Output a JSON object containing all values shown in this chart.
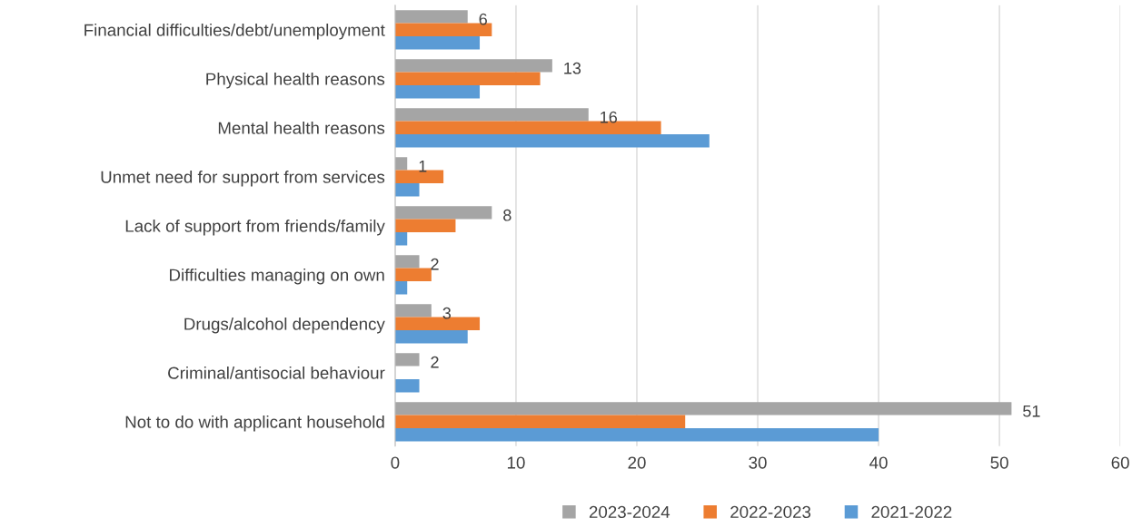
{
  "chart_data": {
    "type": "bar",
    "orientation": "horizontal",
    "categories": [
      "Financial difficulties/debt/unemployment",
      "Physical health reasons",
      "Mental health reasons",
      "Unmet need for support from services",
      "Lack of support from friends/family",
      "Difficulties managing on own",
      "Drugs/alcohol dependency",
      "Criminal/antisocial behaviour",
      "Not to do with applicant household"
    ],
    "series": [
      {
        "name": "2023-2024",
        "color": "#a5a5a5",
        "values": [
          6,
          13,
          16,
          1,
          8,
          2,
          3,
          2,
          51
        ],
        "value_labels": [
          "6",
          "13",
          "16",
          "1",
          "8",
          "2",
          "3",
          "2",
          "51"
        ]
      },
      {
        "name": "2022-2023",
        "color": "#ed7d31",
        "values": [
          8,
          12,
          22,
          4,
          5,
          3,
          7,
          0,
          24
        ]
      },
      {
        "name": "2021-2022",
        "color": "#5b9bd5",
        "values": [
          7,
          7,
          26,
          2,
          1,
          1,
          6,
          2,
          40
        ]
      }
    ],
    "xlim": [
      0,
      60
    ],
    "xticks": [
      0,
      10,
      20,
      30,
      40,
      50,
      60
    ],
    "grid": "x",
    "legend": "bottom"
  }
}
